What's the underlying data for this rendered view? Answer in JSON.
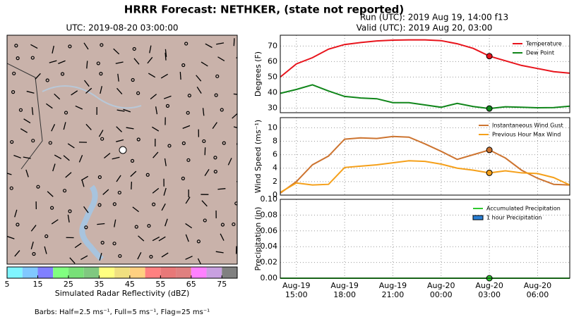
{
  "title": "HRRR Forecast: NETHKER, (state not reported)",
  "run": "Run (UTC): 2019 Aug 19, 14:00 f13",
  "valid": "Valid (UTC): 2019 Aug 20, 03:00",
  "map": {
    "title": "UTC: 2019-08-20 03:00:00",
    "colorbar_label": "Simulated Radar Reflectivity (dBZ)",
    "clim": [
      5,
      80
    ],
    "colors": [
      "#7ff5ff",
      "#80c8ff",
      "#8080ff",
      "#80ff80",
      "#78e078",
      "#80c880",
      "#ffff80",
      "#f0e080",
      "#ffd080",
      "#ff8080",
      "#e87878",
      "#e08080",
      "#ff80ff",
      "#c8a0e0",
      "#808080"
    ],
    "ticks": [
      5,
      15,
      25,
      35,
      45,
      55,
      65,
      75
    ],
    "barbs_note": "Barbs: Half=2.5 ms⁻¹, Full=5 ms⁻¹, Flag=25 ms⁻¹"
  },
  "chart_data": [
    {
      "type": "line",
      "ylabel": "Degrees (F)",
      "xlim": [
        0,
        18
      ],
      "x": [
        0,
        1,
        2,
        3,
        4,
        5,
        6,
        7,
        8,
        9,
        10,
        11,
        12,
        13,
        14,
        15,
        16,
        17,
        18
      ],
      "ylim": [
        27,
        77
      ],
      "yticks": [
        30,
        40,
        50,
        60,
        70
      ],
      "grid": true,
      "legend": "upper right",
      "marker_x": 13,
      "series": [
        {
          "name": "Temperature",
          "color": "#e8141c",
          "values": [
            50,
            58.5,
            62.5,
            68,
            71,
            72.3,
            73.3,
            73.8,
            74,
            74,
            73.5,
            71.5,
            68.5,
            63.5,
            60.5,
            57.5,
            55.5,
            53.5,
            52.5
          ]
        },
        {
          "name": "Dew Point",
          "color": "#10861a",
          "values": [
            39.5,
            42,
            45,
            41,
            37.5,
            36.5,
            36,
            33.5,
            33.5,
            32,
            30.5,
            33,
            31,
            29.7,
            30.8,
            30.5,
            30.2,
            30.3,
            31.2
          ]
        }
      ]
    },
    {
      "type": "line",
      "ylabel": "Wind Speed (ms⁻¹)",
      "xlim": [
        0,
        18
      ],
      "x": [
        0,
        1,
        2,
        3,
        4,
        5,
        6,
        7,
        8,
        9,
        10,
        11,
        12,
        13,
        14,
        15,
        16,
        17,
        18
      ],
      "ylim": [
        0,
        11.5
      ],
      "yticks": [
        0,
        2,
        4,
        6,
        8,
        10
      ],
      "grid": true,
      "legend": "upper right",
      "marker_x": 13,
      "series": [
        {
          "name": "Instantaneous Wind Gust",
          "color": "#cd7430",
          "values": [
            0.3,
            2,
            4.5,
            5.8,
            8.3,
            8.5,
            8.4,
            8.7,
            8.6,
            7.6,
            6.5,
            5.3,
            6,
            6.7,
            5.5,
            3.7,
            2.5,
            1.6,
            1.5
          ]
        },
        {
          "name": "Previous Hour Max Wind",
          "color": "#f5a01a",
          "values": [
            0.4,
            1.8,
            1.5,
            1.6,
            4.1,
            4.3,
            4.5,
            4.8,
            5.1,
            5.0,
            4.6,
            4.0,
            3.7,
            3.3,
            3.6,
            3.3,
            3.2,
            2.6,
            1.5
          ]
        }
      ]
    },
    {
      "type": "line",
      "ylabel": "Precipitation (in)",
      "xlim": [
        0,
        18
      ],
      "x": [
        0,
        1,
        2,
        3,
        4,
        5,
        6,
        7,
        8,
        9,
        10,
        11,
        12,
        13,
        14,
        15,
        16,
        17,
        18
      ],
      "ylim": [
        0,
        0.1
      ],
      "yticks": [
        {
          "value": 0,
          "label": "0.00"
        },
        {
          "value": 0.02,
          "label": "0.02"
        },
        {
          "value": 0.04,
          "label": "0.04"
        },
        {
          "value": 0.06,
          "label": "0.06"
        },
        {
          "value": 0.08,
          "label": "0.08"
        },
        {
          "value": 0.1,
          "label": "0.10"
        }
      ],
      "grid": true,
      "legend": "upper right",
      "marker_x": 13,
      "xticks": [
        {
          "value": 1,
          "label": "Aug-19\n15:00"
        },
        {
          "value": 4,
          "label": "Aug-19\n18:00"
        },
        {
          "value": 7,
          "label": "Aug-19\n21:00"
        },
        {
          "value": 10,
          "label": "Aug-20\n00:00"
        },
        {
          "value": 13,
          "label": "Aug-20\n03:00"
        },
        {
          "value": 16,
          "label": "Aug-20\n06:00"
        }
      ],
      "series": [
        {
          "name": "Accumulated Precipitation",
          "color": "#2ec82e",
          "values": [
            0,
            0,
            0,
            0,
            0,
            0,
            0,
            0,
            0,
            0,
            0,
            0,
            0,
            0,
            0,
            0,
            0,
            0,
            0
          ]
        },
        {
          "name": "1 hour Precipitation",
          "color": "#2a7fd4",
          "bar": true,
          "values": [
            0,
            0,
            0,
            0,
            0,
            0,
            0,
            0,
            0,
            0,
            0,
            0,
            0,
            0,
            0,
            0,
            0,
            0,
            0
          ]
        }
      ]
    }
  ]
}
